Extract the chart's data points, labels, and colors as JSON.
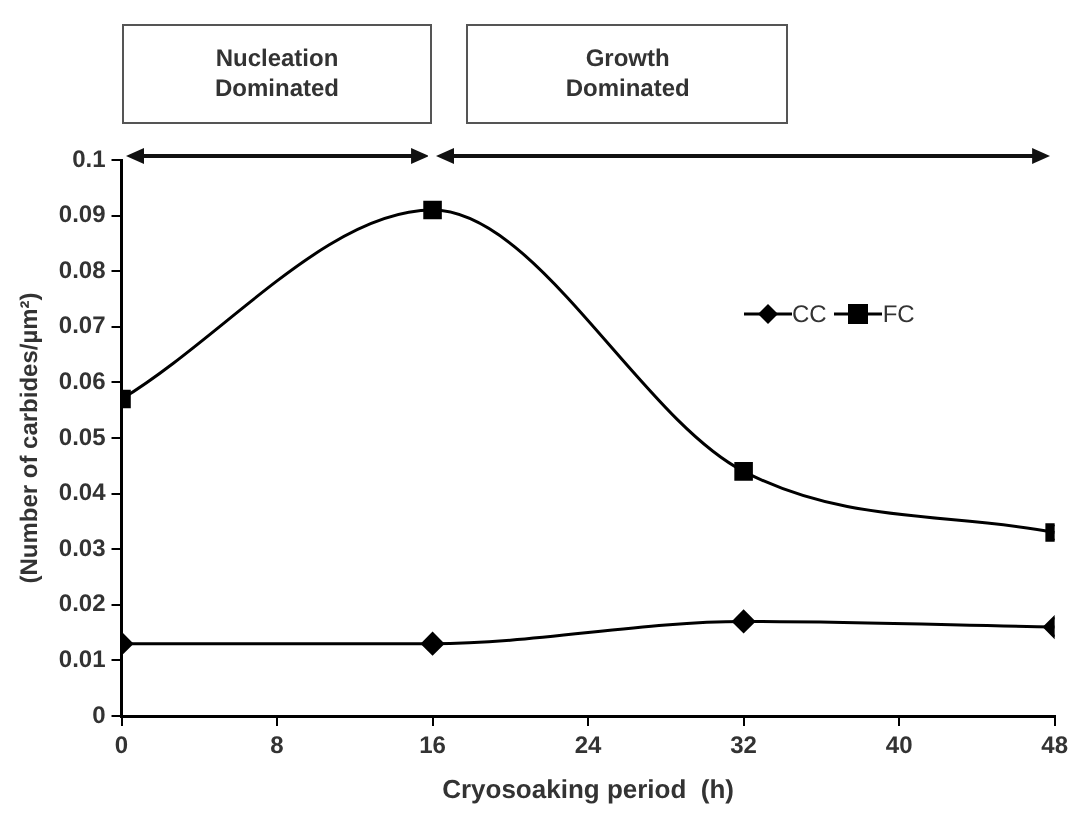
{
  "chart_data": {
    "type": "line",
    "xlabel": "Cryosoaking period  (h)",
    "ylabel": "(Number of carbides/µm²)",
    "x": [
      0,
      16,
      32,
      48
    ],
    "series": [
      {
        "name": "CC",
        "color": "#000000",
        "marker": "diamond",
        "values": [
          0.013,
          0.013,
          0.017,
          0.016
        ]
      },
      {
        "name": "FC",
        "color": "#000000",
        "marker": "square",
        "values": [
          0.057,
          0.091,
          0.044,
          0.033
        ]
      }
    ],
    "xlim": [
      0,
      48
    ],
    "xticks": [
      0,
      8,
      16,
      24,
      32,
      40,
      48
    ],
    "ylim": [
      0,
      0.1
    ],
    "yticks": [
      0,
      0.01,
      0.02,
      0.03,
      0.04,
      0.05,
      0.06,
      0.07,
      0.08,
      0.09,
      0.1
    ],
    "grid": false,
    "legend": "top right",
    "annotations": [
      "Nucleation\nDominated",
      "Growth\nDominated"
    ]
  }
}
